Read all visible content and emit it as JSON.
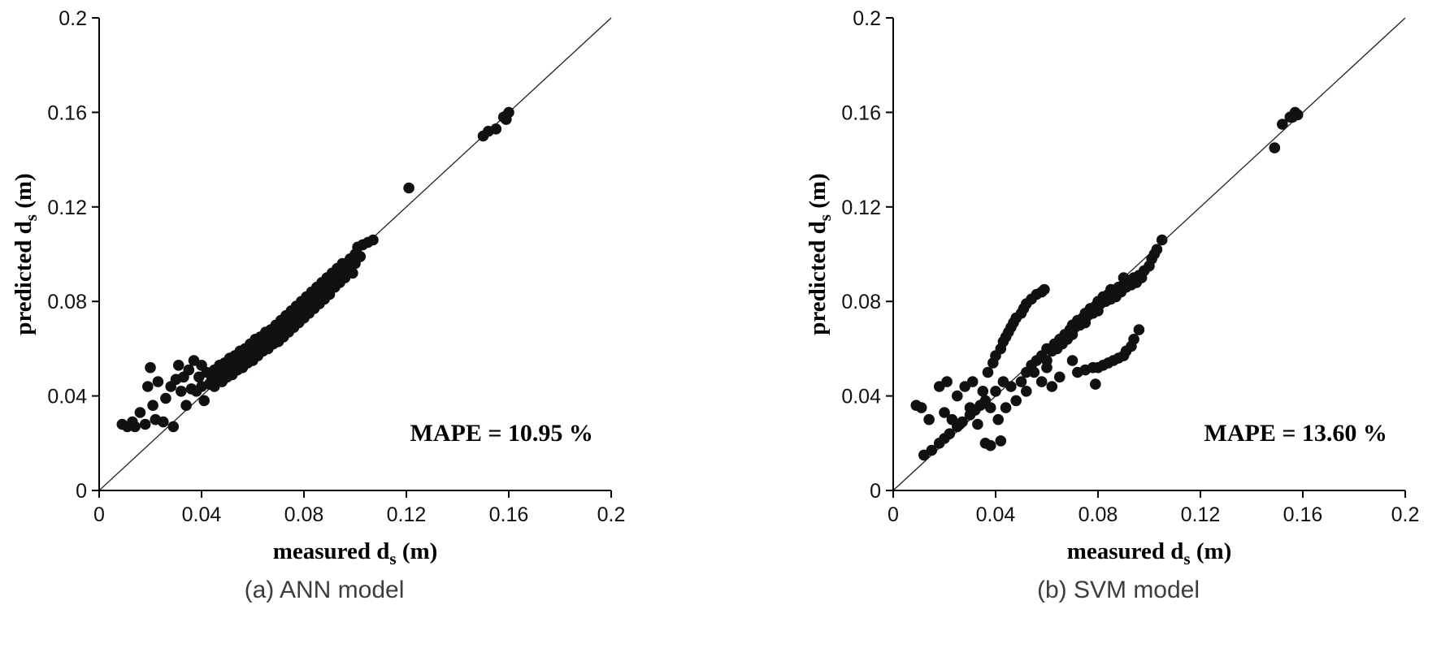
{
  "page": {
    "background": "#ffffff",
    "text_color": "#000000",
    "caption_color": "#3d3d3d"
  },
  "chart_data": [
    {
      "type": "scatter",
      "caption": "(a) ANN model",
      "annotation": "MAPE = 10.95 %",
      "xlabel": {
        "pre": "measured d",
        "sub": "s",
        "post": " (m)"
      },
      "ylabel": {
        "pre": "predicted d",
        "sub": "s",
        "post": " (m)"
      },
      "xlim": [
        0,
        0.2
      ],
      "ylim": [
        0,
        0.2
      ],
      "ticks": [
        0,
        0.04,
        0.08,
        0.12,
        0.16,
        0.2
      ],
      "tick_labels": [
        "0",
        "0.04",
        "0.08",
        "0.12",
        "0.16",
        "0.2"
      ],
      "grid": false,
      "reference_line": {
        "from": [
          0,
          0
        ],
        "to": [
          0.2,
          0.2
        ]
      },
      "marker": {
        "shape": "circle",
        "color": "#111111",
        "radius_px": 6.8
      },
      "points": [
        [
          0.009,
          0.028
        ],
        [
          0.011,
          0.027
        ],
        [
          0.013,
          0.029
        ],
        [
          0.014,
          0.027
        ],
        [
          0.016,
          0.033
        ],
        [
          0.018,
          0.028
        ],
        [
          0.019,
          0.044
        ],
        [
          0.02,
          0.052
        ],
        [
          0.021,
          0.036
        ],
        [
          0.022,
          0.03
        ],
        [
          0.023,
          0.046
        ],
        [
          0.025,
          0.029
        ],
        [
          0.026,
          0.039
        ],
        [
          0.028,
          0.044
        ],
        [
          0.029,
          0.027
        ],
        [
          0.03,
          0.047
        ],
        [
          0.031,
          0.053
        ],
        [
          0.032,
          0.042
        ],
        [
          0.033,
          0.048
        ],
        [
          0.034,
          0.036
        ],
        [
          0.035,
          0.051
        ],
        [
          0.036,
          0.043
        ],
        [
          0.037,
          0.055
        ],
        [
          0.038,
          0.042
        ],
        [
          0.039,
          0.048
        ],
        [
          0.04,
          0.053
        ],
        [
          0.04,
          0.044
        ],
        [
          0.041,
          0.038
        ],
        [
          0.042,
          0.05
        ],
        [
          0.043,
          0.045
        ],
        [
          0.044,
          0.047
        ],
        [
          0.045,
          0.051
        ],
        [
          0.045,
          0.044
        ],
        [
          0.046,
          0.049
        ],
        [
          0.047,
          0.053
        ],
        [
          0.048,
          0.046
        ],
        [
          0.048,
          0.05
        ],
        [
          0.049,
          0.054
        ],
        [
          0.05,
          0.048
        ],
        [
          0.05,
          0.052
        ],
        [
          0.051,
          0.056
        ],
        [
          0.052,
          0.049
        ],
        [
          0.052,
          0.053
        ],
        [
          0.053,
          0.057
        ],
        [
          0.054,
          0.051
        ],
        [
          0.054,
          0.055
        ],
        [
          0.055,
          0.059
        ],
        [
          0.056,
          0.052
        ],
        [
          0.056,
          0.056
        ],
        [
          0.057,
          0.06
        ],
        [
          0.058,
          0.054
        ],
        [
          0.058,
          0.058
        ],
        [
          0.059,
          0.062
        ],
        [
          0.06,
          0.055
        ],
        [
          0.06,
          0.06
        ],
        [
          0.061,
          0.064
        ],
        [
          0.062,
          0.057
        ],
        [
          0.062,
          0.061
        ],
        [
          0.063,
          0.065
        ],
        [
          0.064,
          0.059
        ],
        [
          0.064,
          0.063
        ],
        [
          0.065,
          0.067
        ],
        [
          0.066,
          0.06
        ],
        [
          0.066,
          0.064
        ],
        [
          0.067,
          0.068
        ],
        [
          0.068,
          0.062
        ],
        [
          0.068,
          0.066
        ],
        [
          0.069,
          0.07
        ],
        [
          0.07,
          0.063
        ],
        [
          0.07,
          0.068
        ],
        [
          0.071,
          0.072
        ],
        [
          0.072,
          0.065
        ],
        [
          0.072,
          0.07
        ],
        [
          0.073,
          0.074
        ],
        [
          0.074,
          0.067
        ],
        [
          0.074,
          0.071
        ],
        [
          0.075,
          0.076
        ],
        [
          0.076,
          0.069
        ],
        [
          0.076,
          0.073
        ],
        [
          0.077,
          0.078
        ],
        [
          0.078,
          0.071
        ],
        [
          0.078,
          0.075
        ],
        [
          0.079,
          0.08
        ],
        [
          0.08,
          0.073
        ],
        [
          0.08,
          0.077
        ],
        [
          0.081,
          0.082
        ],
        [
          0.082,
          0.075
        ],
        [
          0.082,
          0.079
        ],
        [
          0.083,
          0.084
        ],
        [
          0.084,
          0.077
        ],
        [
          0.084,
          0.081
        ],
        [
          0.085,
          0.086
        ],
        [
          0.086,
          0.079
        ],
        [
          0.086,
          0.083
        ],
        [
          0.087,
          0.088
        ],
        [
          0.088,
          0.081
        ],
        [
          0.088,
          0.085
        ],
        [
          0.089,
          0.09
        ],
        [
          0.09,
          0.083
        ],
        [
          0.09,
          0.087
        ],
        [
          0.091,
          0.092
        ],
        [
          0.092,
          0.086
        ],
        [
          0.092,
          0.09
        ],
        [
          0.093,
          0.094
        ],
        [
          0.094,
          0.088
        ],
        [
          0.095,
          0.092
        ],
        [
          0.095,
          0.096
        ],
        [
          0.096,
          0.09
        ],
        [
          0.097,
          0.094
        ],
        [
          0.098,
          0.098
        ],
        [
          0.099,
          0.092
        ],
        [
          0.1,
          0.096
        ],
        [
          0.1,
          0.1
        ],
        [
          0.101,
          0.103
        ],
        [
          0.102,
          0.099
        ],
        [
          0.103,
          0.104
        ],
        [
          0.105,
          0.105
        ],
        [
          0.107,
          0.106
        ],
        [
          0.121,
          0.128
        ],
        [
          0.15,
          0.15
        ],
        [
          0.152,
          0.152
        ],
        [
          0.155,
          0.153
        ],
        [
          0.158,
          0.158
        ],
        [
          0.159,
          0.157
        ],
        [
          0.16,
          0.16
        ]
      ]
    },
    {
      "type": "scatter",
      "caption": "(b) SVM model",
      "annotation": "MAPE = 13.60 %",
      "xlabel": {
        "pre": "measured d",
        "sub": "s",
        "post": " (m)"
      },
      "ylabel": {
        "pre": "predicted d",
        "sub": "s",
        "post": " (m)"
      },
      "xlim": [
        0,
        0.2
      ],
      "ylim": [
        0,
        0.2
      ],
      "ticks": [
        0,
        0.04,
        0.08,
        0.12,
        0.16,
        0.2
      ],
      "tick_labels": [
        "0",
        "0.04",
        "0.08",
        "0.12",
        "0.16",
        "0.2"
      ],
      "grid": false,
      "reference_line": {
        "from": [
          0,
          0
        ],
        "to": [
          0.2,
          0.2
        ]
      },
      "marker": {
        "shape": "circle",
        "color": "#111111",
        "radius_px": 6.8
      },
      "points": [
        [
          0.012,
          0.015
        ],
        [
          0.015,
          0.017
        ],
        [
          0.018,
          0.02
        ],
        [
          0.02,
          0.022
        ],
        [
          0.022,
          0.024
        ],
        [
          0.025,
          0.027
        ],
        [
          0.027,
          0.029
        ],
        [
          0.03,
          0.032
        ],
        [
          0.032,
          0.034
        ],
        [
          0.034,
          0.036
        ],
        [
          0.036,
          0.038
        ],
        [
          0.009,
          0.036
        ],
        [
          0.011,
          0.035
        ],
        [
          0.014,
          0.03
        ],
        [
          0.018,
          0.044
        ],
        [
          0.02,
          0.033
        ],
        [
          0.021,
          0.046
        ],
        [
          0.023,
          0.03
        ],
        [
          0.025,
          0.04
        ],
        [
          0.026,
          0.028
        ],
        [
          0.028,
          0.044
        ],
        [
          0.03,
          0.035
        ],
        [
          0.031,
          0.046
        ],
        [
          0.033,
          0.028
        ],
        [
          0.035,
          0.042
        ],
        [
          0.036,
          0.02
        ],
        [
          0.038,
          0.019
        ],
        [
          0.038,
          0.035
        ],
        [
          0.04,
          0.042
        ],
        [
          0.041,
          0.03
        ],
        [
          0.042,
          0.021
        ],
        [
          0.043,
          0.046
        ],
        [
          0.044,
          0.035
        ],
        [
          0.046,
          0.044
        ],
        [
          0.048,
          0.038
        ],
        [
          0.05,
          0.046
        ],
        [
          0.052,
          0.042
        ],
        [
          0.055,
          0.05
        ],
        [
          0.058,
          0.046
        ],
        [
          0.06,
          0.052
        ],
        [
          0.037,
          0.05
        ],
        [
          0.039,
          0.054
        ],
        [
          0.04,
          0.057
        ],
        [
          0.042,
          0.06
        ],
        [
          0.043,
          0.063
        ],
        [
          0.044,
          0.065
        ],
        [
          0.045,
          0.067
        ],
        [
          0.046,
          0.069
        ],
        [
          0.047,
          0.071
        ],
        [
          0.048,
          0.073
        ],
        [
          0.05,
          0.075
        ],
        [
          0.051,
          0.077
        ],
        [
          0.052,
          0.079
        ],
        [
          0.054,
          0.081
        ],
        [
          0.056,
          0.083
        ],
        [
          0.058,
          0.084
        ],
        [
          0.059,
          0.085
        ],
        [
          0.052,
          0.05
        ],
        [
          0.054,
          0.053
        ],
        [
          0.056,
          0.055
        ],
        [
          0.058,
          0.057
        ],
        [
          0.06,
          0.055
        ],
        [
          0.06,
          0.06
        ],
        [
          0.062,
          0.059
        ],
        [
          0.063,
          0.062
        ],
        [
          0.064,
          0.06
        ],
        [
          0.065,
          0.064
        ],
        [
          0.066,
          0.062
        ],
        [
          0.067,
          0.066
        ],
        [
          0.068,
          0.064
        ],
        [
          0.069,
          0.068
        ],
        [
          0.07,
          0.066
        ],
        [
          0.07,
          0.07
        ],
        [
          0.071,
          0.069
        ],
        [
          0.072,
          0.072
        ],
        [
          0.073,
          0.07
        ],
        [
          0.074,
          0.073
        ],
        [
          0.075,
          0.071
        ],
        [
          0.075,
          0.075
        ],
        [
          0.076,
          0.074
        ],
        [
          0.077,
          0.077
        ],
        [
          0.078,
          0.075
        ],
        [
          0.079,
          0.078
        ],
        [
          0.08,
          0.076
        ],
        [
          0.08,
          0.08
        ],
        [
          0.081,
          0.079
        ],
        [
          0.082,
          0.082
        ],
        [
          0.083,
          0.08
        ],
        [
          0.084,
          0.083
        ],
        [
          0.085,
          0.081
        ],
        [
          0.085,
          0.085
        ],
        [
          0.086,
          0.084
        ],
        [
          0.087,
          0.082
        ],
        [
          0.088,
          0.086
        ],
        [
          0.089,
          0.084
        ],
        [
          0.09,
          0.087
        ],
        [
          0.09,
          0.09
        ],
        [
          0.091,
          0.086
        ],
        [
          0.092,
          0.089
        ],
        [
          0.093,
          0.087
        ],
        [
          0.094,
          0.09
        ],
        [
          0.095,
          0.088
        ],
        [
          0.096,
          0.091
        ],
        [
          0.097,
          0.09
        ],
        [
          0.098,
          0.093
        ],
        [
          0.1,
          0.095
        ],
        [
          0.101,
          0.098
        ],
        [
          0.102,
          0.1
        ],
        [
          0.103,
          0.102
        ],
        [
          0.105,
          0.106
        ],
        [
          0.072,
          0.05
        ],
        [
          0.075,
          0.051
        ],
        [
          0.078,
          0.052
        ],
        [
          0.08,
          0.052
        ],
        [
          0.082,
          0.053
        ],
        [
          0.084,
          0.054
        ],
        [
          0.086,
          0.055
        ],
        [
          0.088,
          0.056
        ],
        [
          0.09,
          0.057
        ],
        [
          0.091,
          0.059
        ],
        [
          0.093,
          0.061
        ],
        [
          0.094,
          0.064
        ],
        [
          0.096,
          0.068
        ],
        [
          0.079,
          0.045
        ],
        [
          0.065,
          0.048
        ],
        [
          0.07,
          0.055
        ],
        [
          0.062,
          0.044
        ],
        [
          0.149,
          0.145
        ],
        [
          0.152,
          0.155
        ],
        [
          0.155,
          0.158
        ],
        [
          0.156,
          0.158
        ],
        [
          0.157,
          0.16
        ],
        [
          0.158,
          0.159
        ]
      ]
    }
  ]
}
